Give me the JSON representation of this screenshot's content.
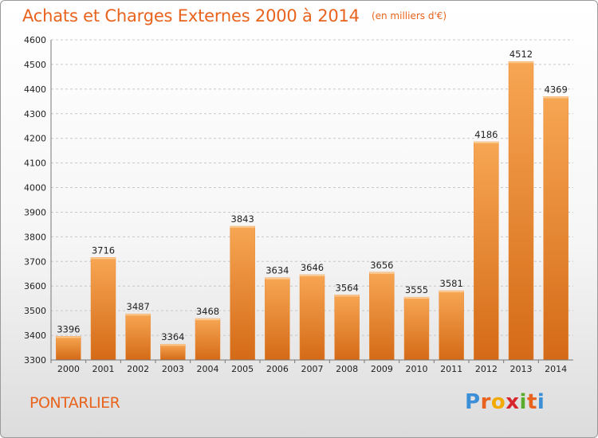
{
  "title": "Achats et Charges Externes 2000 à 2014",
  "unit_note": "(en milliers d'€)",
  "city": "PONTARLIER",
  "logo": {
    "text": "Proxiti",
    "colors": [
      "#3a8fd6",
      "#e8631d",
      "#f2a900",
      "#d8262d",
      "#5aad2c",
      "#e8631d",
      "#3a8fd6"
    ]
  },
  "colors": {
    "accent": "#e8631d",
    "bar_top": "#f7a653",
    "bar_bottom": "#d46a17",
    "grid": "#c8c8c8"
  },
  "chart_data": {
    "type": "bar",
    "title": "Achats et Charges Externes 2000 à 2014",
    "subtitle": "(en milliers d'€)",
    "xlabel": "",
    "ylabel": "",
    "categories": [
      "2000",
      "2001",
      "2002",
      "2003",
      "2004",
      "2005",
      "2006",
      "2007",
      "2008",
      "2009",
      "2010",
      "2011",
      "2012",
      "2013",
      "2014"
    ],
    "values": [
      3396,
      3716,
      3487,
      3364,
      3468,
      3843,
      3634,
      3646,
      3564,
      3656,
      3555,
      3581,
      4186,
      4512,
      4369
    ],
    "ylim": [
      3300,
      4600
    ],
    "yticks": [
      3300,
      3400,
      3500,
      3600,
      3700,
      3800,
      3900,
      4000,
      4100,
      4200,
      4300,
      4400,
      4500,
      4600
    ],
    "grid": "horizontal dashed",
    "legend": "none"
  }
}
